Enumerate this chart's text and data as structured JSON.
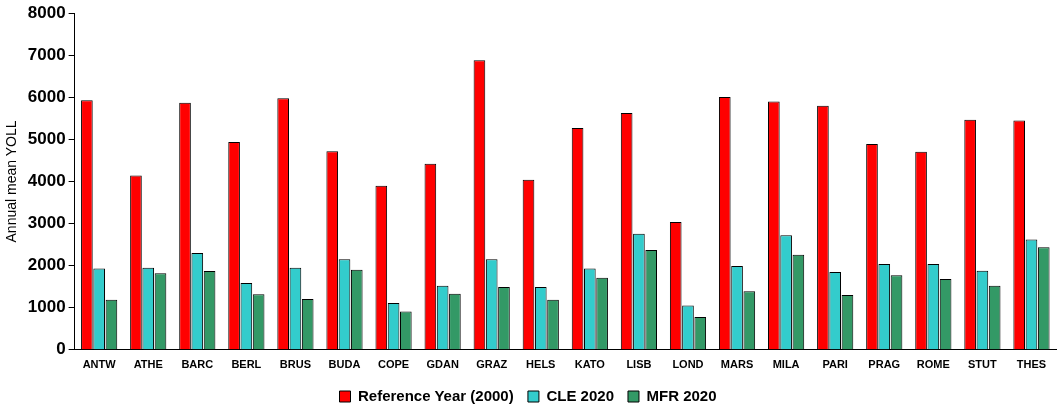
{
  "chart_data": {
    "type": "bar",
    "ylabel": "Annual mean YOLL",
    "categories": [
      "ANTW",
      "ATHE",
      "BARC",
      "BERL",
      "BRUS",
      "BUDA",
      "COPE",
      "GDAN",
      "GRAZ",
      "HELS",
      "KATO",
      "LISB",
      "LOND",
      "MARS",
      "MILA",
      "PARI",
      "PRAG",
      "ROME",
      "STUT",
      "THES"
    ],
    "series": [
      {
        "name": "Reference Year (2000)",
        "color": "#ff0000",
        "values": [
          5930,
          4140,
          5870,
          4940,
          5980,
          4720,
          3900,
          4420,
          6880,
          4040,
          5270,
          5630,
          3040,
          6010,
          5900,
          5800,
          4890,
          4710,
          5470,
          5450
        ]
      },
      {
        "name": "CLE 2020",
        "color": "#33cccc",
        "values": [
          1930,
          1950,
          2300,
          1590,
          1950,
          2150,
          1110,
          1520,
          2150,
          1490,
          1930,
          2760,
          1050,
          1990,
          2720,
          1850,
          2040,
          2040,
          1880,
          2620
        ]
      },
      {
        "name": "MFR 2020",
        "color": "#339966",
        "values": [
          1190,
          1820,
          1870,
          1320,
          1210,
          1900,
          910,
          1330,
          1490,
          1190,
          1710,
          2370,
          780,
          1390,
          2260,
          1300,
          1770,
          1680,
          1520,
          2440
        ]
      }
    ],
    "ylim": [
      0,
      8000
    ],
    "yticks": [
      0,
      1000,
      2000,
      3000,
      4000,
      5000,
      6000,
      7000,
      8000
    ],
    "grid": false,
    "legend": "bottom"
  }
}
